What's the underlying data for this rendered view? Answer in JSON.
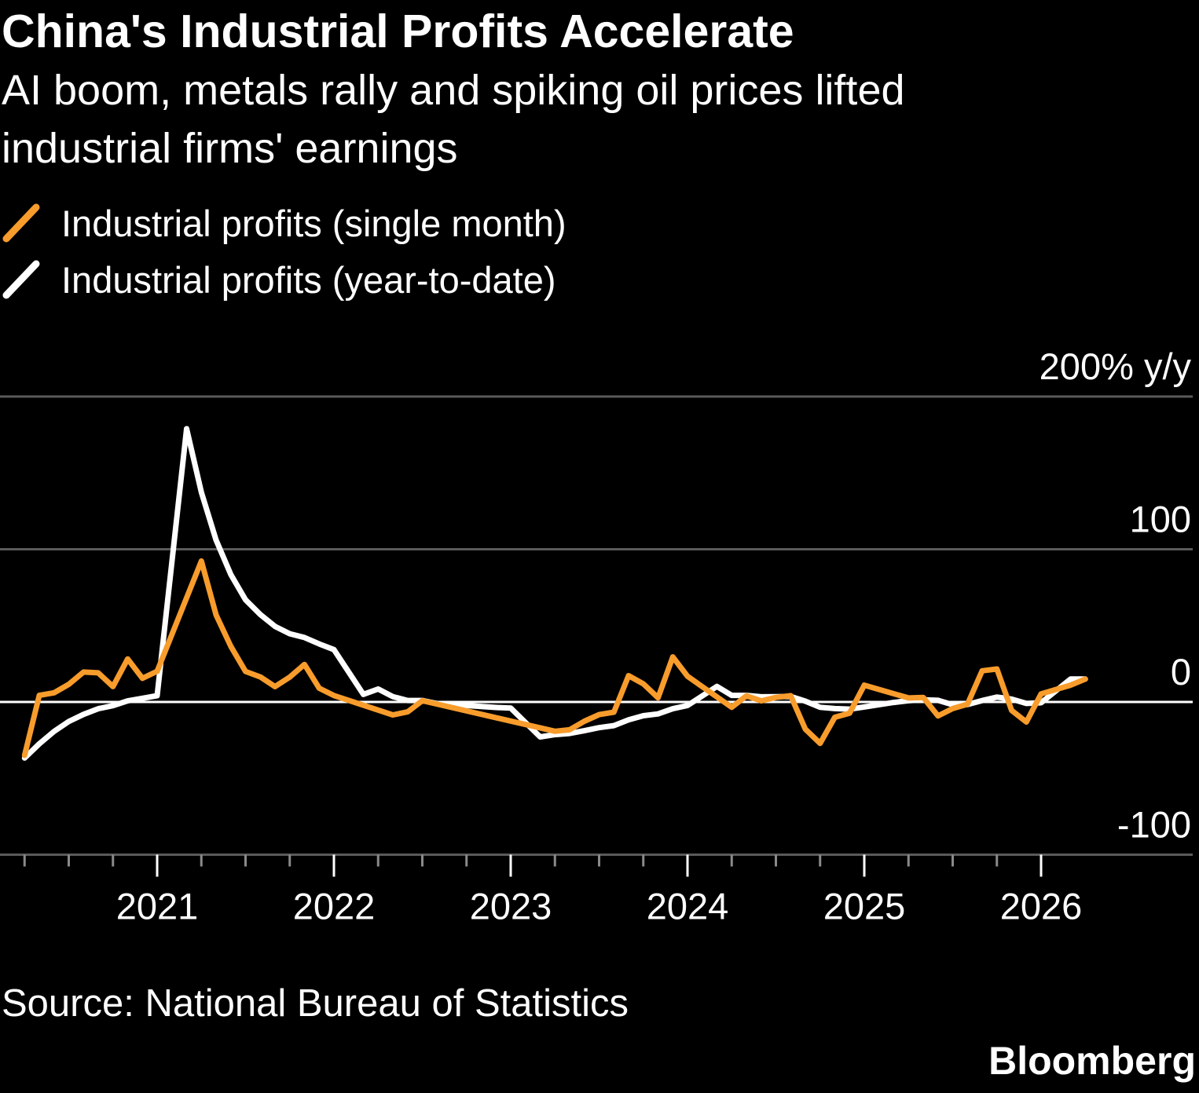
{
  "header": {
    "title": "China's Industrial Profits Accelerate",
    "subtitle_line1": "AI boom, metals rally and spiking oil prices lifted",
    "subtitle_line2": "industrial firms' earnings"
  },
  "footer": {
    "source": "Source: National Bureau of Statistics",
    "brand": "Bloomberg"
  },
  "chart_data": {
    "type": "line",
    "title": "China's Industrial Profits Accelerate",
    "subtitle": "AI boom, metals rally and spiking oil prices lifted industrial firms' earnings",
    "xlabel": "",
    "ylabel": "",
    "y_unit_label": "200% y/y",
    "ylim": [
      -100,
      200
    ],
    "y_ticks": [
      {
        "value": 200,
        "label": "200% y/y"
      },
      {
        "value": 100,
        "label": "100"
      },
      {
        "value": 0,
        "label": "0"
      },
      {
        "value": -100,
        "label": "-100"
      }
    ],
    "x_tick_labels": [
      "2021",
      "2022",
      "2023",
      "2024",
      "2025",
      "2026"
    ],
    "x_range": [
      "2020-02",
      "2026-10"
    ],
    "grid": true,
    "legend_position": "top-left",
    "series": [
      {
        "name": "Industrial profits (single month)",
        "color": "#f89c2c",
        "points": [
          [
            "2020-03",
            -34.9
          ],
          [
            "2020-04",
            4.3
          ],
          [
            "2020-05",
            6.0
          ],
          [
            "2020-06",
            11.5
          ],
          [
            "2020-07",
            19.6
          ],
          [
            "2020-08",
            19.1
          ],
          [
            "2020-09",
            10.1
          ],
          [
            "2020-10",
            28.2
          ],
          [
            "2020-11",
            15.5
          ],
          [
            "2020-12",
            20.1
          ],
          [
            "2021-03",
            92.3
          ],
          [
            "2021-04",
            57.0
          ],
          [
            "2021-05",
            36.4
          ],
          [
            "2021-06",
            20.0
          ],
          [
            "2021-07",
            16.4
          ],
          [
            "2021-08",
            10.1
          ],
          [
            "2021-09",
            16.3
          ],
          [
            "2021-10",
            24.6
          ],
          [
            "2021-11",
            9.0
          ],
          [
            "2021-12",
            4.2
          ],
          [
            "2022-04",
            -8.5
          ],
          [
            "2022-05",
            -6.5
          ],
          [
            "2022-06",
            0.8
          ],
          [
            "2023-03",
            -19.2
          ],
          [
            "2023-04",
            -18.2
          ],
          [
            "2023-05",
            -12.6
          ],
          [
            "2023-06",
            -8.3
          ],
          [
            "2023-07",
            -6.7
          ],
          [
            "2023-08",
            17.2
          ],
          [
            "2023-09",
            11.9
          ],
          [
            "2023-10",
            2.7
          ],
          [
            "2023-11",
            29.5
          ],
          [
            "2023-12",
            16.8
          ],
          [
            "2024-03",
            -3.5
          ],
          [
            "2024-04",
            4.0
          ],
          [
            "2024-05",
            0.7
          ],
          [
            "2024-06",
            3.0
          ],
          [
            "2024-07",
            4.1
          ],
          [
            "2024-08",
            -17.8
          ],
          [
            "2024-09",
            -27.1
          ],
          [
            "2024-10",
            -10.0
          ],
          [
            "2024-11",
            -7.3
          ],
          [
            "2024-12",
            11.0
          ],
          [
            "2025-03",
            2.6
          ],
          [
            "2025-04",
            3.0
          ],
          [
            "2025-05",
            -9.1
          ],
          [
            "2025-06",
            -4.3
          ],
          [
            "2025-07",
            -1.5
          ],
          [
            "2025-08",
            20.4
          ],
          [
            "2025-09",
            21.6
          ],
          [
            "2025-10",
            -5.5
          ],
          [
            "2025-11",
            -13.1
          ],
          [
            "2025-12",
            5.3
          ],
          [
            "2026-02",
            11.0
          ],
          [
            "2026-03",
            15.0
          ]
        ]
      },
      {
        "name": "Industrial profits (year-to-date)",
        "color": "#ffffff",
        "points": [
          [
            "2020-03",
            -36.7
          ],
          [
            "2020-04",
            -27.4
          ],
          [
            "2020-05",
            -19.3
          ],
          [
            "2020-06",
            -12.8
          ],
          [
            "2020-07",
            -8.1
          ],
          [
            "2020-08",
            -4.4
          ],
          [
            "2020-09",
            -2.4
          ],
          [
            "2020-10",
            0.7
          ],
          [
            "2020-11",
            2.4
          ],
          [
            "2020-12",
            4.1
          ],
          [
            "2021-02",
            178.9
          ],
          [
            "2021-03",
            137.3
          ],
          [
            "2021-04",
            106.0
          ],
          [
            "2021-05",
            83.4
          ],
          [
            "2021-06",
            66.9
          ],
          [
            "2021-07",
            57.3
          ],
          [
            "2021-08",
            49.5
          ],
          [
            "2021-09",
            44.7
          ],
          [
            "2021-10",
            42.2
          ],
          [
            "2021-11",
            38.0
          ],
          [
            "2021-12",
            34.3
          ],
          [
            "2022-02",
            5.0
          ],
          [
            "2022-03",
            8.5
          ],
          [
            "2022-04",
            3.5
          ],
          [
            "2022-05",
            1.0
          ],
          [
            "2022-06",
            1.0
          ],
          [
            "2022-07",
            -1.1
          ],
          [
            "2022-08",
            -2.1
          ],
          [
            "2022-09",
            -2.3
          ],
          [
            "2022-10",
            -3.0
          ],
          [
            "2022-11",
            -3.6
          ],
          [
            "2022-12",
            -4.0
          ],
          [
            "2023-02",
            -22.9
          ],
          [
            "2023-03",
            -21.4
          ],
          [
            "2023-04",
            -20.6
          ],
          [
            "2023-05",
            -18.8
          ],
          [
            "2023-06",
            -16.8
          ],
          [
            "2023-07",
            -15.5
          ],
          [
            "2023-08",
            -11.7
          ],
          [
            "2023-09",
            -9.0
          ],
          [
            "2023-10",
            -7.8
          ],
          [
            "2023-11",
            -4.4
          ],
          [
            "2023-12",
            -2.3
          ],
          [
            "2024-02",
            10.2
          ],
          [
            "2024-03",
            4.3
          ],
          [
            "2024-04",
            4.3
          ],
          [
            "2024-05",
            3.4
          ],
          [
            "2024-06",
            3.5
          ],
          [
            "2024-07",
            3.6
          ],
          [
            "2024-08",
            0.5
          ],
          [
            "2024-09",
            -3.5
          ],
          [
            "2024-10",
            -4.3
          ],
          [
            "2024-11",
            -4.7
          ],
          [
            "2024-12",
            -3.3
          ],
          [
            "2025-02",
            -0.3
          ],
          [
            "2025-03",
            0.8
          ],
          [
            "2025-04",
            1.4
          ],
          [
            "2025-05",
            1.1
          ],
          [
            "2025-06",
            -1.8
          ],
          [
            "2025-07",
            -1.7
          ],
          [
            "2025-08",
            0.9
          ],
          [
            "2025-09",
            3.2
          ],
          [
            "2025-10",
            1.9
          ],
          [
            "2025-11",
            -1.0
          ],
          [
            "2025-12",
            -0.5
          ],
          [
            "2026-02",
            15.0
          ],
          [
            "2026-03",
            15.0
          ]
        ]
      }
    ]
  }
}
